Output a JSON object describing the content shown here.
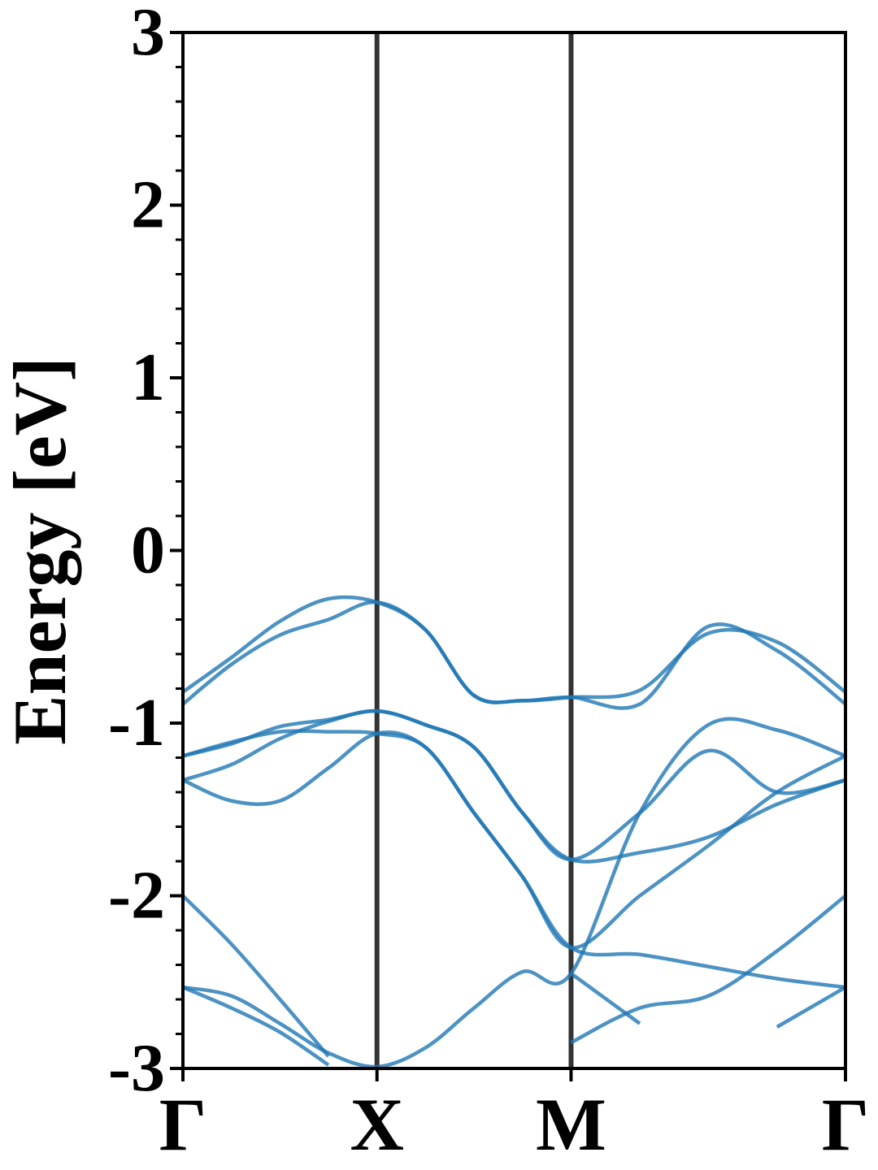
{
  "chart_data": {
    "type": "line",
    "ylabel": "Energy [eV]",
    "xlim": [
      0,
      3.414
    ],
    "ylim": [
      -3,
      3
    ],
    "yticks": [
      -3,
      -2,
      -1,
      0,
      1,
      2,
      3
    ],
    "yminorticks": [
      -2.8,
      -2.6,
      -2.4,
      -2.2,
      -1.8,
      -1.6,
      -1.4,
      -1.2,
      -0.8,
      -0.6,
      -0.4,
      -0.2,
      0.2,
      0.4,
      0.6,
      0.8,
      1.2,
      1.4,
      1.6,
      1.8,
      2.2,
      2.4,
      2.6,
      2.8
    ],
    "xticks": [
      {
        "value": 0,
        "label": "Γ"
      },
      {
        "value": 1,
        "label": "X"
      },
      {
        "value": 2,
        "label": "M"
      },
      {
        "value": 3.414,
        "label": "Γ"
      }
    ],
    "vlines": [
      1,
      2
    ],
    "vline_color": "#333333",
    "color": "#1f77b4",
    "x": [
      0,
      0.25,
      0.5,
      0.75,
      1,
      1.25,
      1.5,
      1.75,
      2,
      2.354,
      2.707,
      3.061,
      3.414
    ],
    "series": [
      {
        "values": [
          -0.82,
          -0.62,
          -0.41,
          -0.28,
          -0.3,
          -0.46,
          -0.84,
          -0.87,
          -0.85,
          -0.81,
          -0.48,
          -0.53,
          -0.82
        ]
      },
      {
        "values": [
          -0.89,
          -0.66,
          -0.49,
          -0.4,
          -0.3,
          -0.46,
          -0.84,
          -0.87,
          -0.85,
          -0.89,
          -0.44,
          -0.58,
          -0.89
        ]
      },
      {
        "values": [
          -1.19,
          -1.12,
          -1.02,
          -0.98,
          -0.93,
          -1.01,
          -1.14,
          -1.52,
          -1.79,
          -1.75,
          -1.66,
          -1.47,
          -1.33
        ]
      },
      {
        "values": [
          -1.33,
          -1.24,
          -1.09,
          -0.99,
          -0.93,
          -1.01,
          -1.14,
          -1.52,
          -1.79,
          -1.52,
          -1.16,
          -1.4,
          -1.33
        ]
      },
      {
        "values": [
          -1.19,
          -1.11,
          -1.05,
          -1.05,
          -1.06,
          -1.14,
          -1.52,
          -1.89,
          -2.3,
          -2.0,
          -1.71,
          -1.4,
          -1.19
        ]
      },
      {
        "values": [
          -1.33,
          -1.45,
          -1.45,
          -1.26,
          -1.06,
          -1.14,
          -1.52,
          -1.89,
          -2.3,
          -2.34,
          -2.41,
          -2.48,
          -2.53
        ]
      },
      {
        "values": [
          -2.53,
          -2.58,
          -2.74,
          -2.91,
          -2.99,
          -2.88,
          -2.65,
          -2.44,
          -2.45,
          -1.52,
          -1.01,
          -1.04,
          -1.19
        ]
      },
      {
        "values": [
          -2.53,
          -2.65,
          -2.79,
          -2.98,
          null,
          null,
          null,
          null,
          -2.85,
          -2.65,
          -2.58,
          -2.32,
          -2.0
        ]
      },
      {
        "values": [
          -2.0,
          -2.28,
          -2.6,
          -2.93,
          null,
          null,
          null,
          null,
          -2.45,
          -2.74,
          null,
          -2.76,
          -2.53
        ]
      }
    ]
  }
}
